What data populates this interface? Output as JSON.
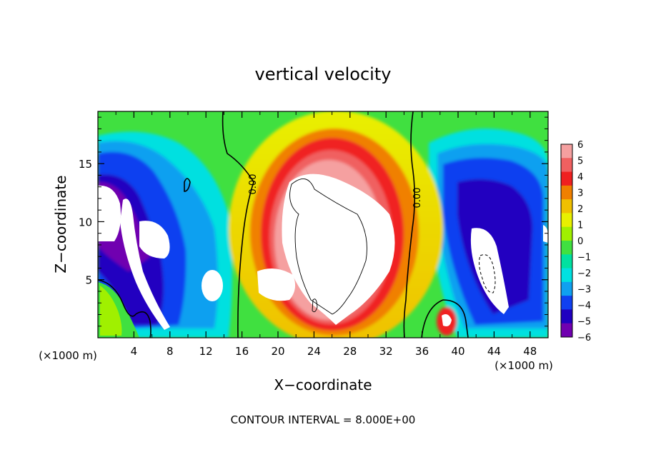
{
  "chart_data": {
    "type": "heatmap",
    "title": "vertical velocity",
    "xlabel": "X−coordinate",
    "ylabel": "Z−coordinate",
    "x_unit_left": "(×1000 m)",
    "x_unit_right": "(×1000 m)",
    "footer": "CONTOUR INTERVAL = 8.000E+00",
    "xlim": [
      0,
      50
    ],
    "ylim": [
      0,
      19.5
    ],
    "x_ticks": [
      4,
      8,
      12,
      16,
      20,
      24,
      28,
      32,
      36,
      40,
      44,
      48
    ],
    "x_tick_labels": [
      "4",
      "8",
      "12",
      "16",
      "20",
      "24",
      "28",
      "32",
      "36",
      "40",
      "44",
      "48"
    ],
    "y_ticks": [
      5,
      10,
      15
    ],
    "y_tick_labels": [
      "5",
      "10",
      "15"
    ],
    "colorbar": {
      "range": [
        -6,
        6
      ],
      "ticks": [
        6,
        5,
        4,
        3,
        2,
        1,
        0,
        -1,
        -2,
        -3,
        -4,
        -5,
        -6
      ],
      "tick_labels": [
        "6",
        "5",
        "4",
        "3",
        "2",
        "1",
        "0",
        "−1",
        "−2",
        "−3",
        "−4",
        "−5",
        "−6"
      ],
      "colors": [
        "#f5a0a0",
        "#f06060",
        "#f02020",
        "#f08000",
        "#f0c000",
        "#e8f000",
        "#a0f000",
        "#40e040",
        "#00e0a0",
        "#00e0e0",
        "#10a0f0",
        "#1040f0",
        "#2000c0",
        "#7000b0"
      ]
    },
    "contour_labels": [
      "0.00",
      "0.00"
    ],
    "grid": false
  }
}
